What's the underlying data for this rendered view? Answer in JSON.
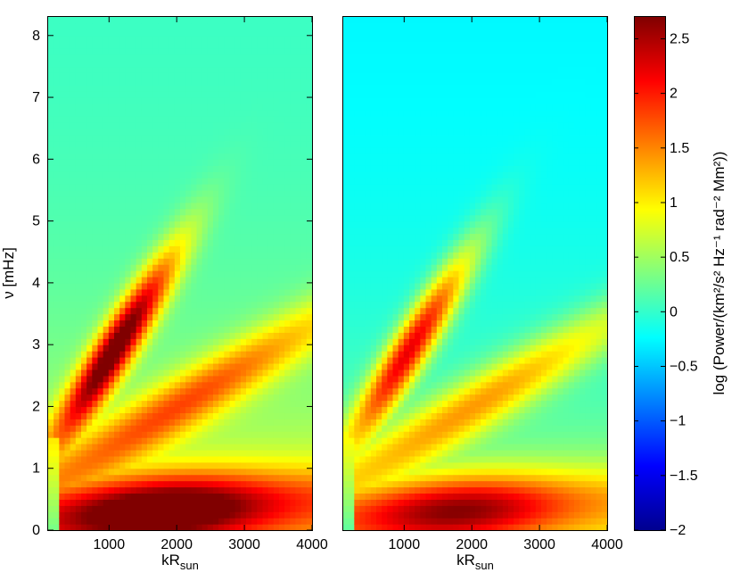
{
  "chart_data": [
    {
      "type": "heatmap",
      "title": "",
      "xlabel": "kR",
      "xlabel_sub": "sun",
      "ylabel": "ν [mHz]",
      "xlim": [
        100,
        4000
      ],
      "ylim": [
        0,
        8.3
      ],
      "xticks": [
        1000,
        2000,
        3000,
        4000
      ],
      "xtick_labels": [
        "1000",
        "2000",
        "3000",
        "4000"
      ],
      "yticks": [
        0,
        1,
        2,
        3,
        4,
        5,
        6,
        7,
        8
      ],
      "ytick_labels": [
        "0",
        "1",
        "2",
        "3",
        "4",
        "5",
        "6",
        "7",
        "8"
      ],
      "colormap": "jet",
      "value_range": [
        -2,
        2.7
      ],
      "grid": false,
      "features": {
        "background_high_freq": 0.0,
        "f_mode_ridge_peak": 2.7,
        "p_mode_ridge_peak": 2.5,
        "low_freq_band_peak": 2.5,
        "min_near_origin": 0.3
      }
    },
    {
      "type": "heatmap",
      "title": "",
      "xlabel": "kR",
      "xlabel_sub": "sun",
      "ylabel": "",
      "xlim": [
        100,
        4000
      ],
      "ylim": [
        0,
        8.3
      ],
      "xticks": [
        1000,
        2000,
        3000,
        4000
      ],
      "xtick_labels": [
        "1000",
        "2000",
        "3000",
        "4000"
      ],
      "yticks": [],
      "colormap": "jet",
      "value_range": [
        -2,
        2.7
      ],
      "grid": false,
      "features": {
        "background_high_freq": -0.3,
        "f_mode_ridge_peak": 2.2,
        "p_mode_ridge_peak": 2.3,
        "low_freq_band_peak": 2.1,
        "min_near_origin": 0.2
      }
    }
  ],
  "colorbar": {
    "label": "log (Power/(km²/s² Hz⁻¹ rad⁻² Mm²))",
    "range": [
      -2,
      2.7
    ],
    "ticks": [
      -2,
      -1.5,
      -1,
      -0.5,
      0,
      0.5,
      1,
      1.5,
      2,
      2.5
    ],
    "tick_labels": [
      "−2",
      "−1.5",
      "−1",
      "−0.5",
      "0",
      "0.5",
      "1",
      "1.5",
      "2",
      "2.5"
    ]
  }
}
